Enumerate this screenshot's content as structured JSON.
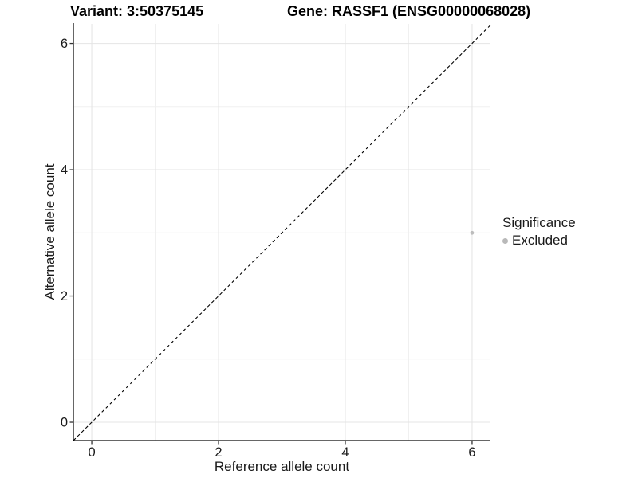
{
  "titles": {
    "left": "Variant: 3:50375145",
    "right": "Gene: RASSF1 (ENSG00000068028)"
  },
  "chart_data": {
    "type": "scatter",
    "title": "Variant: 3:50375145   Gene: RASSF1 (ENSG00000068028)",
    "xlabel": "Reference allele count",
    "ylabel": "Alternative allele count",
    "xlim": [
      -0.29,
      6.29
    ],
    "ylim": [
      -0.29,
      6.31
    ],
    "x_ticks": [
      0,
      2,
      4,
      6
    ],
    "y_ticks": [
      0,
      2,
      4,
      6
    ],
    "x_minor": [
      1,
      3,
      5
    ],
    "y_minor": [
      1,
      3,
      5
    ],
    "grid": true,
    "points": [
      {
        "x": 6,
        "y": 3,
        "series": "Excluded"
      }
    ],
    "identity_line": {
      "equation": "y = x",
      "style": "dashed",
      "color": "#000000"
    },
    "legend": {
      "title": "Significance",
      "position": "right",
      "items": [
        {
          "label": "Excluded",
          "color": "#b9b9b9"
        }
      ]
    },
    "colors": {
      "point": "#bdbdbd",
      "grid_major": "#e4e4e4",
      "grid_minor": "#f0f0f0",
      "axis": "#333333",
      "tick_text": "#1a1a1a"
    }
  }
}
